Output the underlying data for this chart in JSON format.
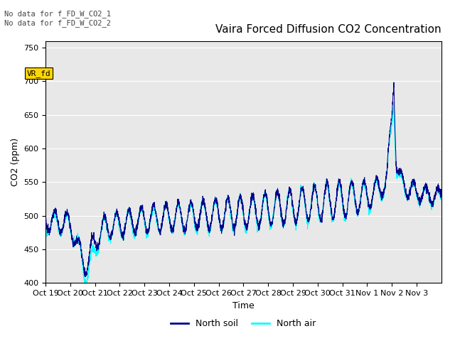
{
  "title": "Vaira Forced Diffusion CO2 Concentration",
  "xlabel": "Time",
  "ylabel": "CO2 (ppm)",
  "ylim": [
    400,
    760
  ],
  "yticks": [
    400,
    450,
    500,
    550,
    600,
    650,
    700,
    750
  ],
  "xtick_labels": [
    "Oct 19",
    "Oct 20",
    "Oct 21",
    "Oct 22",
    "Oct 23",
    "Oct 24",
    "Oct 25",
    "Oct 26",
    "Oct 27",
    "Oct 28",
    "Oct 29",
    "Oct 30",
    "Oct 31",
    "Nov 1",
    "Nov 2",
    "Nov 3"
  ],
  "annotation_text": "No data for f_FD_W_CO2_1\nNo data for f_FD_W_CO2_2",
  "vr_fd_label": "VR_fd",
  "vr_fd_color": "#FFD700",
  "background_color": "#ffffff",
  "plot_bg_color": "#e8e8e8",
  "soil_color": "#00008B",
  "air_color": "#00FFFF",
  "soil_label": "North soil",
  "air_label": "North air",
  "title_fontsize": 11,
  "axis_fontsize": 9,
  "tick_fontsize": 8
}
